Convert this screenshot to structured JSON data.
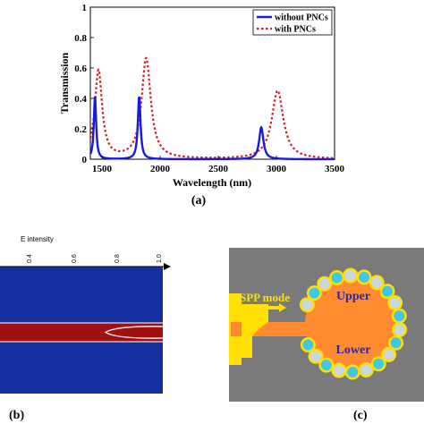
{
  "chart_data": {
    "type": "line",
    "xlabel": "Wavelength (nm)",
    "ylabel": "Transmission",
    "xlim": [
      1400,
      3500
    ],
    "ylim": [
      0,
      1
    ],
    "xticks": [
      "1500",
      "2000",
      "2500",
      "3000",
      "3500"
    ],
    "yticks": [
      "0",
      "0.2",
      "0.4",
      "0.6",
      "0.8",
      "1"
    ],
    "grid": false,
    "legend_position": "top-right",
    "series": [
      {
        "name": "without PNCs",
        "color": "#1a1adc",
        "style": "solid",
        "peaks": [
          {
            "x": 1440,
            "y": 0.41,
            "width": 12
          },
          {
            "x": 1820,
            "y": 0.41,
            "width": 14
          },
          {
            "x": 2870,
            "y": 0.21,
            "width": 22
          }
        ]
      },
      {
        "name": "with PNCs",
        "color": "#d42020",
        "style": "dotted",
        "peaks": [
          {
            "x": 1470,
            "y": 0.58,
            "width": 38
          },
          {
            "x": 1880,
            "y": 0.66,
            "width": 48
          },
          {
            "x": 3010,
            "y": 0.45,
            "width": 60
          }
        ]
      }
    ]
  },
  "panels": {
    "a_label": "(a)",
    "b_label": "(b)",
    "c_label": "(c)"
  },
  "panel_b": {
    "title": "E intensity",
    "ticks": [
      "0.4",
      "0.6",
      "0.8",
      "1.0"
    ],
    "colors": {
      "background": "#1430a0",
      "band": "#a01010",
      "edge": "#ffffff"
    }
  },
  "panel_c": {
    "spp_label": "SPP mode",
    "upper_label": "Upper",
    "lower_label": "Lower",
    "colors": {
      "background": "#7a7a7a",
      "disk": "#ff8a30",
      "gold": "#ffe000",
      "particle": "#40c8e8",
      "text": "#2a2aa0"
    }
  }
}
